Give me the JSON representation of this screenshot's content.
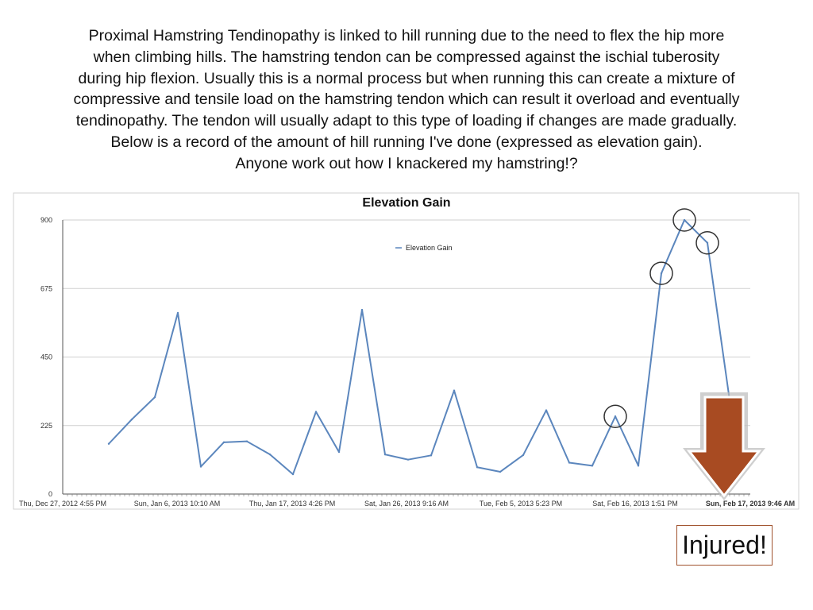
{
  "intro": {
    "lines": [
      "Proximal Hamstring Tendinopathy is linked to hill running due to the need to flex the hip more",
      "when climbing hills. The hamstring tendon can be compressed against the ischial tuberosity",
      "during hip flexion. Usually this is a normal process but when running this can create a mixture of",
      "compressive and tensile load on the hamstring tendon which can result it overload and eventually",
      "tendinopathy. The tendon will usually adapt to this type of loading if changes are made gradually.",
      "Below is a record of the amount of hill running I've done (expressed as elevation gain).",
      "Anyone work out how I knackered my hamstring!?"
    ]
  },
  "chart_data": {
    "type": "line",
    "title": "Elevation Gain",
    "xlabel": "",
    "ylabel": "",
    "ylim": [
      0,
      900
    ],
    "yticks": [
      0,
      225,
      450,
      675,
      900
    ],
    "grid": true,
    "legend_position": "top-center",
    "x_tick_labels": [
      "Thu, Dec 27, 2012 4:55 PM",
      "Sun, Jan 6, 2013 10:10 AM",
      "Thu, Jan 17, 2013 4:26 PM",
      "Sat, Jan 26, 2013 9:16 AM",
      "Tue, Feb 5, 2013 5:23 PM",
      "Sat, Feb 16, 2013 1:51 PM",
      "Sun, Feb 17, 2013 9:46 AM"
    ],
    "series": [
      {
        "name": "Elevation Gain",
        "color": "#5b86bd",
        "values": [
          165,
          245,
          318,
          595,
          90,
          170,
          173,
          130,
          65,
          270,
          138,
          605,
          130,
          113,
          127,
          340,
          88,
          73,
          128,
          275,
          103,
          93,
          255,
          93,
          725,
          900,
          825,
          290
        ]
      }
    ],
    "highlighted_values": [
      255,
      725,
      900,
      825
    ]
  },
  "annotation": {
    "label": "Injured!",
    "arrow_color": "#a84b22"
  }
}
